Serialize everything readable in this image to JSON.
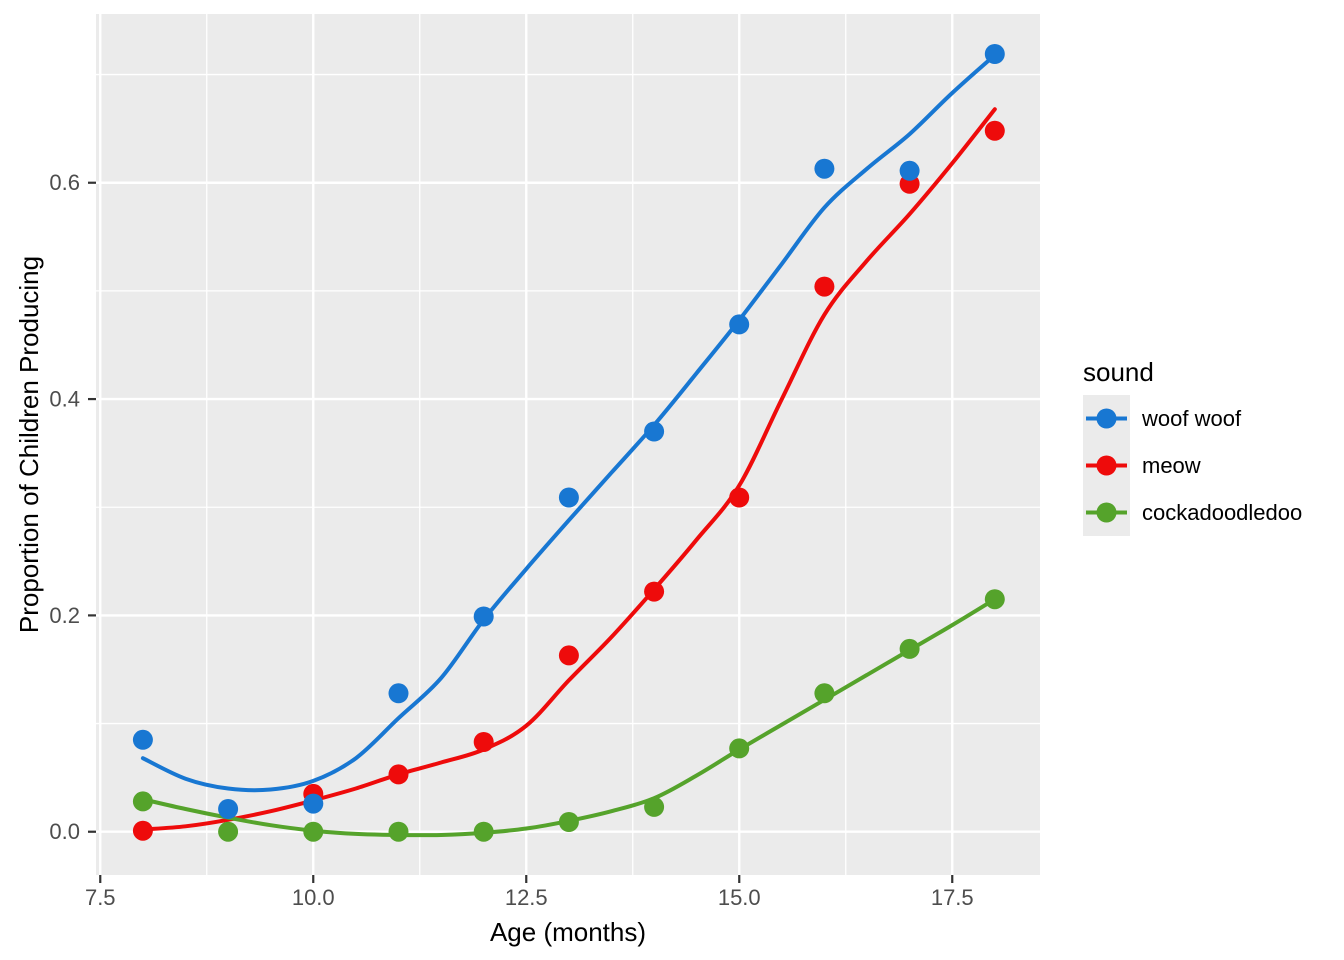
{
  "figure": {
    "background": "#FFFFFF",
    "panel_fill": "#EBEBEB",
    "grid_color": "#FFFFFF",
    "tick_mark_color": "#333333",
    "tick_label_color": "#4D4D4D",
    "axis_title_color": "#000000",
    "legend_key_fill": "#EBEBEB",
    "legend_text_color": "#000000"
  },
  "chart_data": {
    "type": "scatter",
    "title": "",
    "xlabel": "Age (months)",
    "ylabel": "Proportion of Children Producing",
    "xlim": [
      7.45,
      18.53
    ],
    "ylim": [
      -0.04,
      0.756
    ],
    "grid": true,
    "x_major_ticks": [
      7.5,
      10.0,
      12.5,
      15.0,
      17.5
    ],
    "x_tick_labels": [
      "7.5",
      "10.0",
      "12.5",
      "15.0",
      "17.5"
    ],
    "x_minor_ticks": [
      8.75,
      11.25,
      13.75,
      16.25
    ],
    "y_major_ticks": [
      0.0,
      0.2,
      0.4,
      0.6
    ],
    "y_tick_labels": [
      "0.0",
      "0.2",
      "0.4",
      "0.6"
    ],
    "y_minor_ticks": [
      0.1,
      0.3,
      0.5,
      0.7
    ],
    "legend": {
      "title": "sound",
      "position": "right"
    },
    "point_draw_order": [
      "meow",
      "woof woof",
      "cockadoodledoo"
    ],
    "series": [
      {
        "name": "woof woof",
        "color": "#1877D2",
        "points": [
          [
            8,
            0.085
          ],
          [
            9,
            0.021
          ],
          [
            10,
            0.026
          ],
          [
            11,
            0.128
          ],
          [
            12,
            0.199
          ],
          [
            13,
            0.309
          ],
          [
            14,
            0.37
          ],
          [
            15,
            0.469
          ],
          [
            16,
            0.613
          ],
          [
            17,
            0.611
          ],
          [
            18,
            0.719
          ]
        ],
        "smooth": [
          [
            8,
            0.068
          ],
          [
            8.5,
            0.049
          ],
          [
            9,
            0.04
          ],
          [
            9.5,
            0.039
          ],
          [
            10,
            0.047
          ],
          [
            10.5,
            0.068
          ],
          [
            11,
            0.105
          ],
          [
            11.5,
            0.142
          ],
          [
            12,
            0.196
          ],
          [
            12.5,
            0.243
          ],
          [
            13,
            0.288
          ],
          [
            13.5,
            0.332
          ],
          [
            14,
            0.376
          ],
          [
            14.5,
            0.424
          ],
          [
            15,
            0.473
          ],
          [
            15.5,
            0.525
          ],
          [
            16,
            0.577
          ],
          [
            16.5,
            0.613
          ],
          [
            17,
            0.645
          ],
          [
            17.5,
            0.683
          ],
          [
            18,
            0.718
          ]
        ]
      },
      {
        "name": "meow",
        "color": "#EE0B0B",
        "points": [
          [
            8,
            0.001
          ],
          [
            10,
            0.035
          ],
          [
            11,
            0.053
          ],
          [
            12,
            0.083
          ],
          [
            13,
            0.163
          ],
          [
            14,
            0.222
          ],
          [
            15,
            0.309
          ],
          [
            16,
            0.504
          ],
          [
            17,
            0.599
          ],
          [
            18,
            0.648
          ]
        ],
        "smooth": [
          [
            8,
            0.002
          ],
          [
            8.5,
            0.005
          ],
          [
            9,
            0.011
          ],
          [
            9.5,
            0.019
          ],
          [
            10,
            0.029
          ],
          [
            10.5,
            0.04
          ],
          [
            11,
            0.053
          ],
          [
            11.5,
            0.064
          ],
          [
            12,
            0.076
          ],
          [
            12.5,
            0.098
          ],
          [
            13,
            0.14
          ],
          [
            13.5,
            0.18
          ],
          [
            14,
            0.224
          ],
          [
            14.5,
            0.27
          ],
          [
            15,
            0.32
          ],
          [
            15.5,
            0.4
          ],
          [
            16,
            0.478
          ],
          [
            16.5,
            0.528
          ],
          [
            17,
            0.571
          ],
          [
            17.5,
            0.618
          ],
          [
            18,
            0.668
          ]
        ]
      },
      {
        "name": "cockadoodledoo",
        "color": "#55A32B",
        "points": [
          [
            8,
            0.028
          ],
          [
            9,
            0.0
          ],
          [
            10,
            0.0
          ],
          [
            11,
            0.0
          ],
          [
            12,
            0.0
          ],
          [
            13,
            0.009
          ],
          [
            14,
            0.023
          ],
          [
            15,
            0.077
          ],
          [
            16,
            0.128
          ],
          [
            17,
            0.169
          ],
          [
            18,
            0.215
          ]
        ],
        "smooth": [
          [
            8,
            0.03
          ],
          [
            8.5,
            0.021
          ],
          [
            9,
            0.013
          ],
          [
            9.5,
            0.006
          ],
          [
            10,
            0.001
          ],
          [
            10.5,
            -0.002
          ],
          [
            11,
            -0.003
          ],
          [
            11.5,
            -0.003
          ],
          [
            12,
            -0.001
          ],
          [
            12.5,
            0.003
          ],
          [
            13,
            0.01
          ],
          [
            13.5,
            0.019
          ],
          [
            14,
            0.031
          ],
          [
            14.5,
            0.052
          ],
          [
            15,
            0.076
          ],
          [
            15.5,
            0.099
          ],
          [
            16,
            0.122
          ],
          [
            16.5,
            0.145
          ],
          [
            17,
            0.168
          ],
          [
            17.5,
            0.191
          ],
          [
            18,
            0.215
          ]
        ]
      }
    ]
  }
}
